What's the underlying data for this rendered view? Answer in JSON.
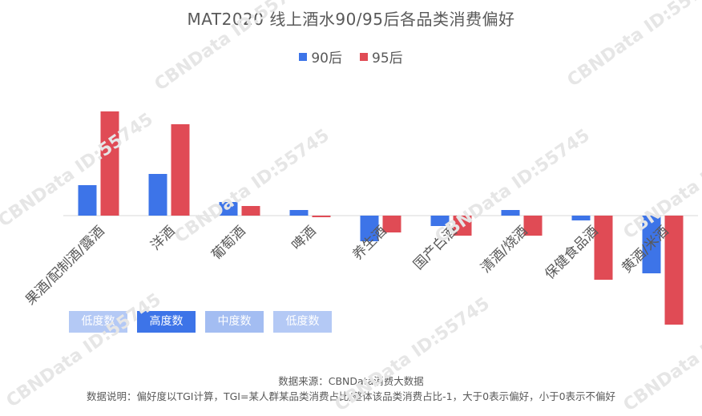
{
  "title": "MAT2020 线上酒水90/95后各品类消费偏好",
  "legend": {
    "series_90": "90后",
    "series_95": "95后"
  },
  "colors": {
    "series_90": "#3d74e8",
    "series_95": "#e04b55",
    "axis": "#d9d9d9"
  },
  "chart_data": {
    "type": "bar",
    "title": "MAT2020 线上酒水90/95后各品类消费偏好",
    "categories": [
      "果酒/配制酒/露酒",
      "洋酒",
      "葡萄酒",
      "啤酒",
      "养生酒",
      "国产白酒",
      "清酒/烧酒",
      "保健食品酒",
      "黄酒/米酒"
    ],
    "series": [
      {
        "name": "90后",
        "values": [
          0.19,
          0.26,
          0.085,
          0.035,
          -0.16,
          -0.065,
          0.035,
          -0.03,
          -0.36
        ]
      },
      {
        "name": "95后",
        "values": [
          0.65,
          0.57,
          0.06,
          -0.01,
          -0.105,
          -0.125,
          -0.125,
          -0.4,
          -0.68
        ]
      }
    ],
    "ylim": [
      -0.7,
      0.7
    ],
    "xlabel": "",
    "ylabel": "",
    "grid": false,
    "legend_position": "top-center"
  },
  "tags": [
    "低度数",
    "高度数",
    "中度数",
    "低度数"
  ],
  "footer": {
    "source": "数据来源：CBNData消费大数据",
    "note": "数据说明：偏好度以TGI计算，TGI=某人群某品类消费占比/整体该品类消费占比-1，大于0表示偏好，小于0表示不偏好"
  },
  "watermark": "CBNData ID:55745"
}
